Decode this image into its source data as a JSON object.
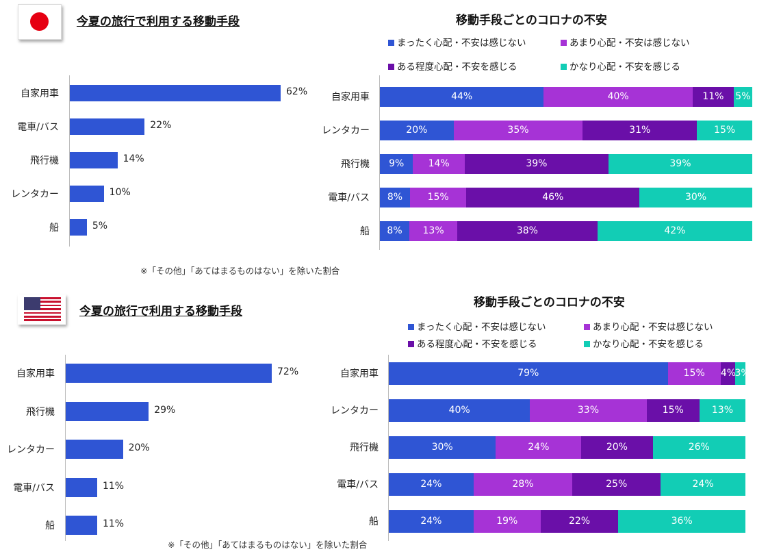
{
  "colors": {
    "bar_blue": "#2f55d4",
    "seg_none": "#2f55d4",
    "seg_little": "#a633d6",
    "seg_some": "#6a0fa8",
    "seg_very": "#12cdb5"
  },
  "legend_labels": [
    "まったく心配・不安は感じない",
    "あまり心配・不安は感じない",
    "ある程度心配・不安を感じる",
    "かなり心配・不安を感じる"
  ],
  "japan": {
    "flag": "japan-flag",
    "title": "今夏の旅行で利用する移動手段",
    "note": "※「その他」「あてはまるものはない」を除いた割合",
    "chart_title": "移動手段ごとのコロナの不安"
  },
  "usa": {
    "flag": "usa-flag",
    "title": "今夏の旅行で利用する移動手段",
    "note": "※「その他」「あてはまるものはない」を除いた割合",
    "chart_title": "移動手段ごとのコロナの不安"
  },
  "chart_data": [
    {
      "type": "bar",
      "orientation": "horizontal",
      "categories": [
        "自家用車",
        "電車/バス",
        "飛行機",
        "レンタカー",
        "船"
      ],
      "values": [
        62,
        22,
        14,
        10,
        5
      ],
      "value_suffix": "%",
      "title": "今夏の旅行で利用する移動手段"
    },
    {
      "type": "bar",
      "orientation": "horizontal",
      "stacked": true,
      "title": "移動手段ごとのコロナの不安",
      "categories": [
        "自家用車",
        "レンタカー",
        "飛行機",
        "電車/バス",
        "船"
      ],
      "series": [
        {
          "name": "まったく心配・不安は感じない",
          "values": [
            44,
            20,
            9,
            8,
            8
          ]
        },
        {
          "name": "あまり心配・不安は感じない",
          "values": [
            40,
            35,
            14,
            15,
            13
          ]
        },
        {
          "name": "ある程度心配・不安を感じる",
          "values": [
            11,
            31,
            39,
            46,
            38
          ]
        },
        {
          "name": "かなり心配・不安を感じる",
          "values": [
            5,
            15,
            39,
            30,
            42
          ]
        }
      ],
      "legend_position": "top"
    },
    {
      "type": "bar",
      "orientation": "horizontal",
      "categories": [
        "自家用車",
        "飛行機",
        "レンタカー",
        "電車/バス",
        "船"
      ],
      "values": [
        72,
        29,
        20,
        11,
        11
      ],
      "value_suffix": "%",
      "title": "今夏の旅行で利用する移動手段"
    },
    {
      "type": "bar",
      "orientation": "horizontal",
      "stacked": true,
      "title": "移動手段ごとのコロナの不安",
      "categories": [
        "自家用車",
        "レンタカー",
        "飛行機",
        "電車/バス",
        "船"
      ],
      "series": [
        {
          "name": "まったく心配・不安は感じない",
          "values": [
            79,
            40,
            30,
            24,
            24
          ]
        },
        {
          "name": "あまり心配・不安は感じない",
          "values": [
            15,
            33,
            24,
            28,
            19
          ]
        },
        {
          "name": "ある程度心配・不安を感じる",
          "values": [
            4,
            15,
            20,
            25,
            22
          ]
        },
        {
          "name": "かなり心配・不安を感じる",
          "values": [
            3,
            13,
            26,
            24,
            36
          ]
        }
      ],
      "legend_position": "top"
    }
  ]
}
